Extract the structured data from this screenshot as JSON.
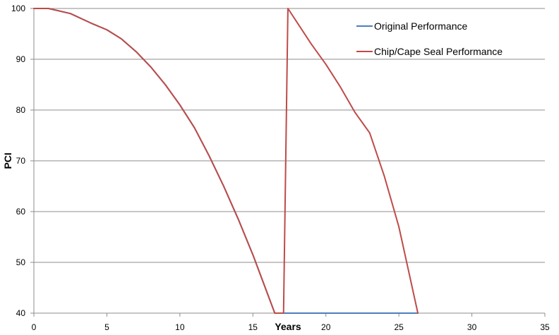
{
  "chart_data": {
    "type": "line",
    "title": "",
    "xlabel": "Years",
    "ylabel": "PCI",
    "xlim": [
      0,
      35
    ],
    "ylim": [
      40,
      100
    ],
    "x_ticks": [
      0,
      5,
      10,
      15,
      20,
      25,
      30,
      35
    ],
    "y_ticks": [
      40,
      50,
      60,
      70,
      80,
      90,
      100
    ],
    "grid": "horizontal",
    "legend_position": "top-right",
    "series": [
      {
        "name": "Original Performance",
        "color": "#4A7EBB",
        "x": [
          0,
          1,
          2.5,
          4,
          5,
          6,
          7,
          8,
          9,
          10,
          11,
          12,
          13,
          14,
          15,
          16.5,
          17,
          20,
          25,
          26.3
        ],
        "y": [
          100,
          100,
          99,
          97,
          95.8,
          94,
          91.5,
          88.5,
          85,
          81,
          76.5,
          71,
          65,
          58.5,
          51.5,
          40,
          40,
          40,
          40,
          40
        ]
      },
      {
        "name": "Chip/Cape Seal Performance",
        "color": "#BE4B48",
        "x": [
          0,
          1,
          2.5,
          4,
          5,
          6,
          7,
          8,
          9,
          10,
          11,
          12,
          13,
          14,
          15,
          16.5,
          17.1,
          17.4,
          19,
          20,
          21,
          22,
          22.5,
          23,
          24,
          25,
          26.3
        ],
        "y": [
          100,
          100,
          99,
          97,
          95.8,
          94,
          91.5,
          88.5,
          85,
          81,
          76.5,
          71,
          65,
          58.5,
          51.5,
          40,
          40,
          100,
          93,
          89,
          84.5,
          79.5,
          77.5,
          75.5,
          67,
          57,
          40
        ]
      }
    ]
  }
}
